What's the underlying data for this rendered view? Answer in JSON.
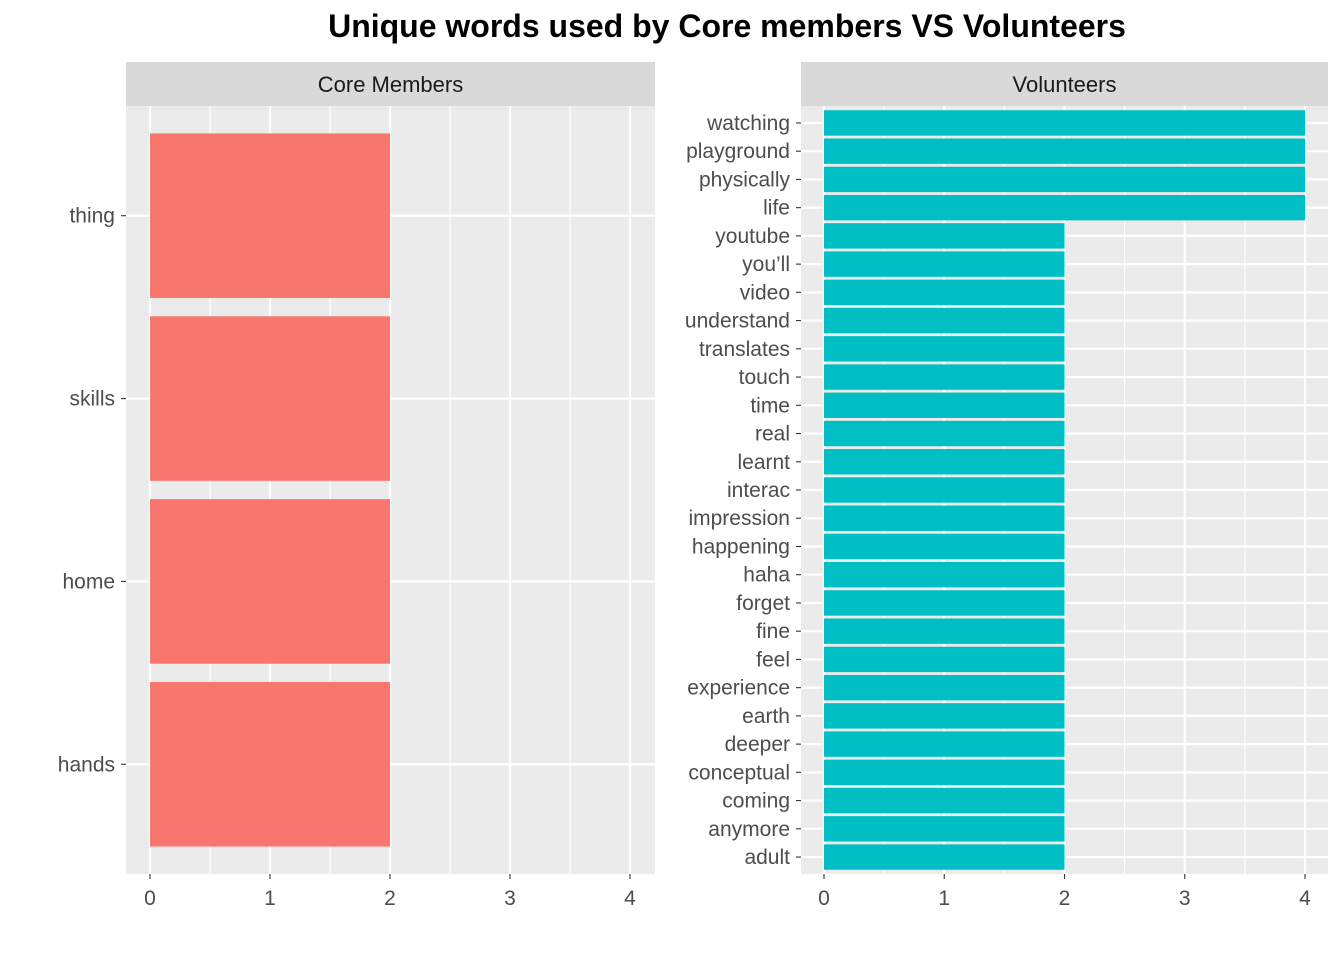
{
  "title": "Unique words used by Core members VS Volunteers",
  "colors": {
    "core": "#F8766D",
    "volunteers": "#00BFC4",
    "panel_bg": "#EBEBEB",
    "strip_bg": "#D9D9D9",
    "grid": "#FFFFFF",
    "text": "#4D4D4D"
  },
  "chart_data": [
    {
      "type": "bar",
      "orientation": "horizontal",
      "facet": "Core Members",
      "categories": [
        "thing",
        "skills",
        "home",
        "hands"
      ],
      "values": [
        2,
        2,
        2,
        2
      ],
      "xlim": [
        0,
        4
      ],
      "xticks": [
        0,
        1,
        2,
        3,
        4
      ],
      "grid": true
    },
    {
      "type": "bar",
      "orientation": "horizontal",
      "facet": "Volunteers",
      "categories": [
        "watching",
        "playground",
        "physically",
        "life",
        "youtube",
        "you’ll",
        "video",
        "understand",
        "translates",
        "touch",
        "time",
        "real",
        "learnt",
        "interac",
        "impression",
        "happening",
        "haha",
        "forget",
        "fine",
        "feel",
        "experience",
        "earth",
        "deeper",
        "conceptual",
        "coming",
        "anymore",
        "adult"
      ],
      "values": [
        4,
        4,
        4,
        4,
        2,
        2,
        2,
        2,
        2,
        2,
        2,
        2,
        2,
        2,
        2,
        2,
        2,
        2,
        2,
        2,
        2,
        2,
        2,
        2,
        2,
        2,
        2
      ],
      "xlim": [
        0,
        4
      ],
      "xticks": [
        0,
        1,
        2,
        3,
        4
      ],
      "grid": true
    }
  ]
}
